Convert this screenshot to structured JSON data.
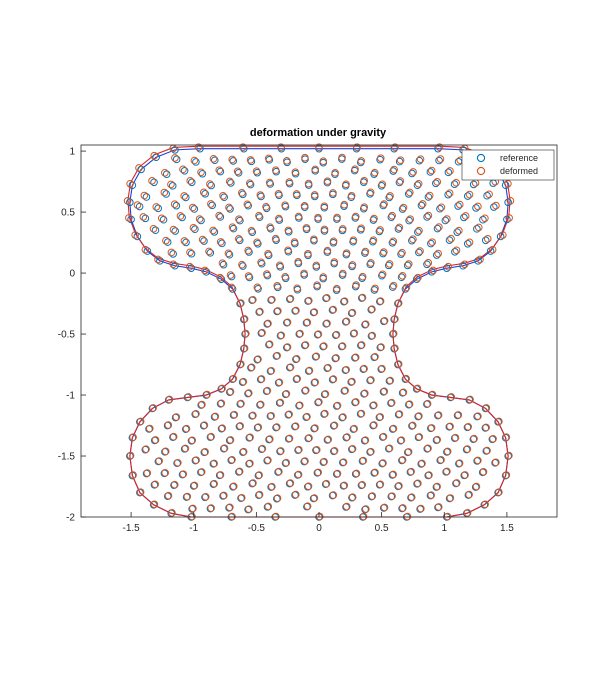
{
  "chart_data": {
    "type": "scatter",
    "title": "deformation under gravity",
    "xlabel": "",
    "ylabel": "",
    "xlim": [
      -1.9,
      1.9
    ],
    "ylim": [
      -2,
      1.05
    ],
    "xticks": [
      -1.5,
      -1,
      -0.5,
      0,
      0.5,
      1,
      1.5
    ],
    "xtick_labels": [
      "-1.5",
      "-1",
      "-0.5",
      "0",
      "0.5",
      "1",
      "1.5"
    ],
    "yticks": [
      1,
      0.5,
      0,
      -0.5,
      -1,
      -1.5,
      -2
    ],
    "ytick_labels": [
      "1",
      "0.5",
      "0",
      "-0.5",
      "-1",
      "-1.5",
      "-2"
    ],
    "grid": false,
    "legend_position": "top-right",
    "series": [
      {
        "name": "reference",
        "color": "#0072BD",
        "marker": "circle"
      },
      {
        "name": "deformed",
        "color": "#D95319",
        "marker": "circle"
      }
    ],
    "outlines": [
      {
        "color": "#1f3fd6"
      },
      {
        "color": "#d62728"
      }
    ],
    "boundary": [
      [
        -0.95,
        1.02
      ],
      [
        -0.6,
        1.02
      ],
      [
        -0.3,
        1.02
      ],
      [
        0,
        1.02
      ],
      [
        0.3,
        1.02
      ],
      [
        0.6,
        1.02
      ],
      [
        0.95,
        1.02
      ],
      [
        1.15,
        1.01
      ],
      [
        1.3,
        0.95
      ],
      [
        1.42,
        0.85
      ],
      [
        1.49,
        0.72
      ],
      [
        1.51,
        0.58
      ],
      [
        1.5,
        0.44
      ],
      [
        1.45,
        0.3
      ],
      [
        1.37,
        0.18
      ],
      [
        1.27,
        0.1
      ],
      [
        1.15,
        0.06
      ],
      [
        1.02,
        0.04
      ],
      [
        0.9,
        0.01
      ],
      [
        0.78,
        -0.05
      ],
      [
        0.69,
        -0.13
      ],
      [
        0.63,
        -0.25
      ],
      [
        0.6,
        -0.38
      ],
      [
        0.59,
        -0.5
      ],
      [
        0.6,
        -0.62
      ],
      [
        0.63,
        -0.75
      ],
      [
        0.69,
        -0.87
      ],
      [
        0.78,
        -0.95
      ],
      [
        0.9,
        -1.0
      ],
      [
        1.05,
        -1.02
      ],
      [
        1.2,
        -1.04
      ],
      [
        1.33,
        -1.11
      ],
      [
        1.43,
        -1.22
      ],
      [
        1.49,
        -1.35
      ],
      [
        1.51,
        -1.5
      ],
      [
        1.49,
        -1.66
      ],
      [
        1.43,
        -1.8
      ],
      [
        1.32,
        -1.9
      ],
      [
        1.18,
        -1.97
      ],
      [
        1.02,
        -2.0
      ],
      [
        0.7,
        -2.0
      ],
      [
        0.35,
        -2.0
      ],
      [
        0,
        -2.0
      ],
      [
        -0.35,
        -2.0
      ],
      [
        -0.7,
        -2.0
      ],
      [
        -1.02,
        -2.0
      ],
      [
        -1.18,
        -1.97
      ],
      [
        -1.32,
        -1.9
      ],
      [
        -1.43,
        -1.8
      ],
      [
        -1.49,
        -1.66
      ],
      [
        -1.51,
        -1.5
      ],
      [
        -1.49,
        -1.35
      ],
      [
        -1.43,
        -1.22
      ],
      [
        -1.33,
        -1.11
      ],
      [
        -1.2,
        -1.04
      ],
      [
        -1.05,
        -1.02
      ],
      [
        -0.9,
        -1.0
      ],
      [
        -0.78,
        -0.95
      ],
      [
        -0.69,
        -0.87
      ],
      [
        -0.63,
        -0.75
      ],
      [
        -0.6,
        -0.62
      ],
      [
        -0.59,
        -0.5
      ],
      [
        -0.6,
        -0.38
      ],
      [
        -0.63,
        -0.25
      ],
      [
        -0.69,
        -0.13
      ],
      [
        -0.78,
        -0.05
      ],
      [
        -0.9,
        0.01
      ],
      [
        -1.02,
        0.04
      ],
      [
        -1.15,
        0.06
      ],
      [
        -1.27,
        0.1
      ],
      [
        -1.37,
        0.18
      ],
      [
        -1.45,
        0.3
      ],
      [
        -1.5,
        0.44
      ],
      [
        -1.51,
        0.58
      ],
      [
        -1.49,
        0.72
      ],
      [
        -1.42,
        0.85
      ],
      [
        -1.3,
        0.95
      ],
      [
        -1.15,
        1.01
      ]
    ]
  }
}
